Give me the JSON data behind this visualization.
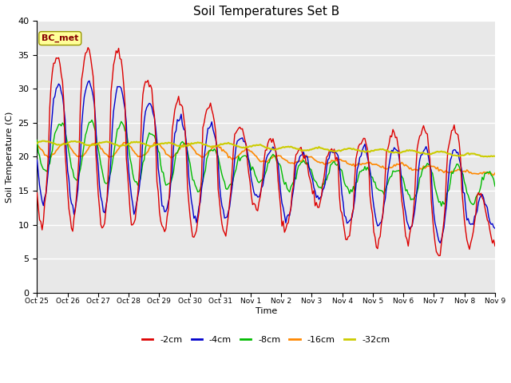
{
  "title": "Soil Temperatures Set B",
  "xlabel": "Time",
  "ylabel": "Soil Temperature (C)",
  "ylim": [
    0,
    40
  ],
  "annotation": "BC_met",
  "bg_color": "#e8e8e8",
  "plot_bg": "#ebebeb",
  "colors": {
    "-2cm": "#dd0000",
    "-4cm": "#0000cc",
    "-8cm": "#00bb00",
    "-16cm": "#ff8800",
    "-32cm": "#cccc00"
  },
  "tick_labels": [
    "Oct 25",
    "Oct 26",
    "Oct 27",
    "Oct 28",
    "Oct 29",
    "Oct 30",
    "Oct 31",
    "Nov 1",
    "Nov 2",
    "Nov 3",
    "Nov 4",
    "Nov 5",
    "Nov 6",
    "Nov 7",
    "Nov 8",
    "Nov 9"
  ],
  "legend_labels": [
    "-2cm",
    "-4cm",
    "-8cm",
    "-16cm",
    "-32cm"
  ],
  "figsize": [
    6.4,
    4.8
  ],
  "dpi": 100
}
